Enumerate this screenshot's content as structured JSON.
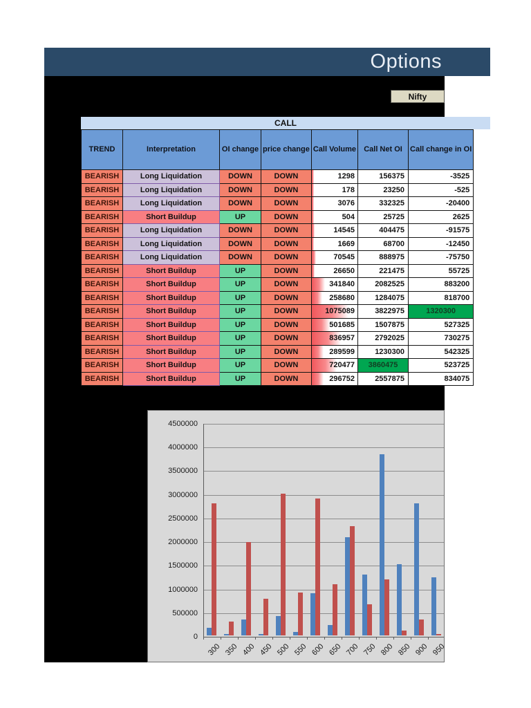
{
  "header": {
    "title": "Options"
  },
  "index_chip": {
    "label": "Nifty"
  },
  "section_header": {
    "label": "CALL"
  },
  "colors": {
    "title_bar_bg": "#2B4A68",
    "canvas_bg": "#000000",
    "chip_bg": "#DDD9C3",
    "call_band_bg": "#C9DCF3",
    "table_header_bg": "#6C9BD6",
    "trend_bearish_bg": "#F4816C",
    "long_liquidation_bg": "#CCC1DA",
    "short_buildup_bg": "#F87E82",
    "up_bg": "#6BD7A1",
    "down_bg": "#F4816C",
    "highlight_green": "#00A651",
    "volume_databar": "#F2575B",
    "bar_blue": "#4F81BD",
    "bar_red": "#C0504D",
    "chart_bg": "#D9D9D9"
  },
  "table": {
    "columns": [
      "TREND",
      "Interpretation",
      "OI change",
      "price change",
      "Call Volume",
      "Call Net OI",
      "Call change in OI"
    ],
    "rows": [
      {
        "trend": "BEARISH",
        "interpretation": "Long Liquidation",
        "oi_change": "DOWN",
        "price_change": "DOWN",
        "call_volume": "1298",
        "call_net_oi": "156375",
        "call_change_in_oi": "-3525",
        "net_oi_green": false,
        "change_green": false
      },
      {
        "trend": "BEARISH",
        "interpretation": "Long Liquidation",
        "oi_change": "DOWN",
        "price_change": "DOWN",
        "call_volume": "178",
        "call_net_oi": "23250",
        "call_change_in_oi": "-525",
        "net_oi_green": false,
        "change_green": false
      },
      {
        "trend": "BEARISH",
        "interpretation": "Long Liquidation",
        "oi_change": "DOWN",
        "price_change": "DOWN",
        "call_volume": "3076",
        "call_net_oi": "332325",
        "call_change_in_oi": "-20400",
        "net_oi_green": false,
        "change_green": false
      },
      {
        "trend": "BEARISH",
        "interpretation": "Short Buildup",
        "oi_change": "UP",
        "price_change": "DOWN",
        "call_volume": "504",
        "call_net_oi": "25725",
        "call_change_in_oi": "2625",
        "net_oi_green": false,
        "change_green": false
      },
      {
        "trend": "BEARISH",
        "interpretation": "Long Liquidation",
        "oi_change": "DOWN",
        "price_change": "DOWN",
        "call_volume": "14545",
        "call_net_oi": "404475",
        "call_change_in_oi": "-91575",
        "net_oi_green": false,
        "change_green": false
      },
      {
        "trend": "BEARISH",
        "interpretation": "Long Liquidation",
        "oi_change": "DOWN",
        "price_change": "DOWN",
        "call_volume": "1669",
        "call_net_oi": "68700",
        "call_change_in_oi": "-12450",
        "net_oi_green": false,
        "change_green": false
      },
      {
        "trend": "BEARISH",
        "interpretation": "Long Liquidation",
        "oi_change": "DOWN",
        "price_change": "DOWN",
        "call_volume": "70545",
        "call_net_oi": "888975",
        "call_change_in_oi": "-75750",
        "net_oi_green": false,
        "change_green": false
      },
      {
        "trend": "BEARISH",
        "interpretation": "Short Buildup",
        "oi_change": "UP",
        "price_change": "DOWN",
        "call_volume": "26650",
        "call_net_oi": "221475",
        "call_change_in_oi": "55725",
        "net_oi_green": false,
        "change_green": false
      },
      {
        "trend": "BEARISH",
        "interpretation": "Short Buildup",
        "oi_change": "UP",
        "price_change": "DOWN",
        "call_volume": "341840",
        "call_net_oi": "2082525",
        "call_change_in_oi": "883200",
        "net_oi_green": false,
        "change_green": false
      },
      {
        "trend": "BEARISH",
        "interpretation": "Short Buildup",
        "oi_change": "UP",
        "price_change": "DOWN",
        "call_volume": "258680",
        "call_net_oi": "1284075",
        "call_change_in_oi": "818700",
        "net_oi_green": false,
        "change_green": false
      },
      {
        "trend": "BEARISH",
        "interpretation": "Short Buildup",
        "oi_change": "UP",
        "price_change": "DOWN",
        "call_volume": "1075089",
        "call_net_oi": "3822975",
        "call_change_in_oi": "1320300",
        "net_oi_green": false,
        "change_green": true
      },
      {
        "trend": "BEARISH",
        "interpretation": "Short Buildup",
        "oi_change": "UP",
        "price_change": "DOWN",
        "call_volume": "501685",
        "call_net_oi": "1507875",
        "call_change_in_oi": "527325",
        "net_oi_green": false,
        "change_green": false
      },
      {
        "trend": "BEARISH",
        "interpretation": "Short Buildup",
        "oi_change": "UP",
        "price_change": "DOWN",
        "call_volume": "836957",
        "call_net_oi": "2792025",
        "call_change_in_oi": "730275",
        "net_oi_green": false,
        "change_green": false
      },
      {
        "trend": "BEARISH",
        "interpretation": "Short Buildup",
        "oi_change": "UP",
        "price_change": "DOWN",
        "call_volume": "289599",
        "call_net_oi": "1230300",
        "call_change_in_oi": "542325",
        "net_oi_green": false,
        "change_green": false
      },
      {
        "trend": "BEARISH",
        "interpretation": "Short Buildup",
        "oi_change": "UP",
        "price_change": "DOWN",
        "call_volume": "720477",
        "call_net_oi": "3860475",
        "call_change_in_oi": "523725",
        "net_oi_green": true,
        "change_green": false
      },
      {
        "trend": "BEARISH",
        "interpretation": "Short Buildup",
        "oi_change": "UP",
        "price_change": "DOWN",
        "call_volume": "296752",
        "call_net_oi": "2557875",
        "call_change_in_oi": "834075",
        "net_oi_green": false,
        "change_green": false
      }
    ]
  },
  "chart_data": {
    "type": "bar",
    "title": "",
    "xlabel": "",
    "ylabel": "",
    "categories": [
      "300",
      "350",
      "400",
      "450",
      "500",
      "550",
      "600",
      "650",
      "700",
      "750",
      "800",
      "850",
      "900",
      "950"
    ],
    "series": [
      {
        "name": "blue",
        "color": "#4F81BD",
        "values": [
          156375,
          23250,
          332325,
          25725,
          404475,
          68700,
          888975,
          221475,
          2082525,
          1284075,
          3822975,
          1507875,
          2792025,
          1230300
        ]
      },
      {
        "name": "red",
        "color": "#C0504D",
        "values": [
          2790000,
          300000,
          1975000,
          780000,
          3000000,
          910000,
          2890000,
          1080000,
          2310000,
          660000,
          1190000,
          100000,
          330000,
          30000
        ]
      }
    ],
    "ylim": [
      0,
      4500000
    ],
    "ytick_step": 500000,
    "ytick_labels": [
      "0",
      "500000",
      "1000000",
      "1500000",
      "2000000",
      "2500000",
      "3000000",
      "3500000",
      "4000000",
      "4500000"
    ],
    "grid": "on",
    "legend": "none",
    "plot_bg": "#D9D9D9"
  }
}
